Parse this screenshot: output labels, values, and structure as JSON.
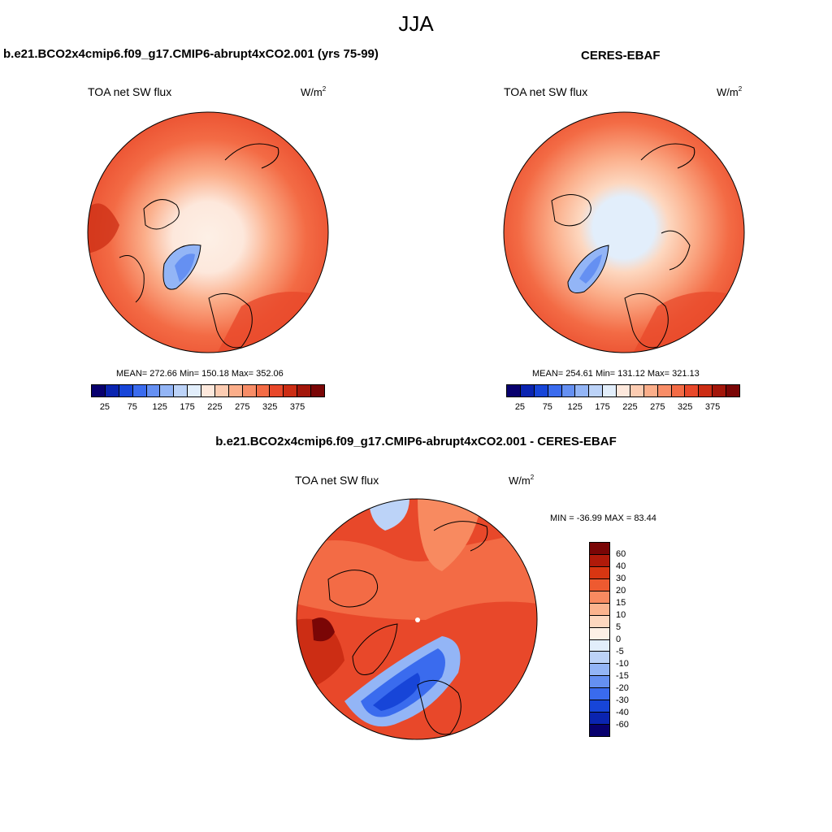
{
  "main_title": "JJA",
  "panels": [
    {
      "title": "b.e21.BCO2x4cmip6.f09_g17.CMIP6-abrupt4xCO2.001 (yrs 75-99)",
      "left_label": "TOA net SW flux",
      "unit": "W/m",
      "unit_sup": "2",
      "stats": "MEAN= 272.66  Min= 150.18  Max= 352.06"
    },
    {
      "title": "CERES-EBAF",
      "left_label": "TOA net SW flux",
      "unit": "W/m",
      "unit_sup": "2",
      "stats": "MEAN= 254.61  Min= 131.12  Max= 321.13"
    },
    {
      "title": "b.e21.BCO2x4cmip6.f09_g17.CMIP6-abrupt4xCO2.001 - CERES-EBAF",
      "left_label": "TOA net SW flux",
      "unit": "W/m",
      "unit_sup": "2",
      "stats": "MIN = -36.99 MAX =  83.44"
    }
  ],
  "abs_colorbar": {
    "colors": [
      "#08006e",
      "#0a24b0",
      "#1745d8",
      "#3a6bee",
      "#6590f2",
      "#93b5f6",
      "#bcd3f8",
      "#e2eefb",
      "#fde8dc",
      "#fcccb2",
      "#fbae8a",
      "#f88d67",
      "#f36b45",
      "#e8482a",
      "#cc2d14",
      "#a3160a",
      "#7a0606"
    ],
    "tick_labels": [
      "25",
      "75",
      "125",
      "175",
      "225",
      "275",
      "325",
      "375"
    ]
  },
  "diff_colorbar": {
    "colors": [
      "#7a0606",
      "#b01a0a",
      "#d83612",
      "#ee5a30",
      "#f88a60",
      "#fbb38e",
      "#fdd7bf",
      "#fdf0e6",
      "#e2eefb",
      "#bcd3f8",
      "#93b5f6",
      "#6590f2",
      "#3a6bee",
      "#1745d8",
      "#0a24b0",
      "#08006e"
    ],
    "tick_labels": [
      "60",
      "40",
      "30",
      "20",
      "15",
      "10",
      "5",
      "0",
      "-5",
      "-10",
      "-15",
      "-20",
      "-30",
      "-40",
      "-60"
    ]
  }
}
